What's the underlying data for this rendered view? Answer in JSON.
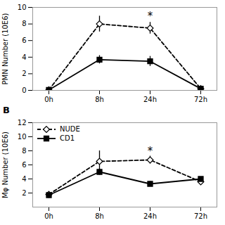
{
  "chart_data": [
    {
      "type": "line",
      "categories": [
        "0h",
        "8h",
        "24h",
        "72h"
      ],
      "series": [
        {
          "name": "NUDE",
          "color": "#000000",
          "marker": "diamond",
          "line_style": "dashed",
          "values": [
            0.05,
            8.0,
            7.5,
            0.2
          ],
          "yerr": [
            0.1,
            0.95,
            0.7,
            0.15
          ]
        },
        {
          "name": "CD1",
          "color": "#000000",
          "marker": "square",
          "line_style": "solid",
          "values": [
            0.05,
            3.7,
            3.5,
            0.2
          ],
          "yerr": [
            0.1,
            0.5,
            0.6,
            0.1
          ]
        }
      ],
      "ylabel": "PMN Number (10E6)",
      "ylim": [
        0,
        10
      ],
      "yticks": [
        0,
        2,
        4,
        6,
        8,
        10
      ],
      "annotations": [
        {
          "text": "*",
          "x": "24h",
          "y": 8.5
        }
      ]
    },
    {
      "type": "line",
      "title": "B",
      "categories": [
        "0h",
        "8h",
        "24h",
        "72h"
      ],
      "series": [
        {
          "name": "NUDE",
          "color": "#000000",
          "marker": "diamond",
          "line_style": "dashed",
          "values": [
            1.8,
            6.5,
            6.7,
            3.6
          ],
          "yerr": [
            0.15,
            1.5,
            0.55,
            0.35
          ]
        },
        {
          "name": "CD1",
          "color": "#000000",
          "marker": "square",
          "line_style": "solid",
          "values": [
            1.7,
            5.0,
            3.3,
            4.0
          ],
          "yerr": [
            0.15,
            0.45,
            0.35,
            0.3
          ]
        }
      ],
      "ylabel": "Mφ Number (10E6)",
      "ylim": [
        0,
        12
      ],
      "yticks": [
        2,
        4,
        6,
        8,
        10,
        12
      ],
      "legend": "upper left",
      "annotations": [
        {
          "text": "*",
          "x": "24h",
          "y": 7.5
        }
      ]
    }
  ]
}
